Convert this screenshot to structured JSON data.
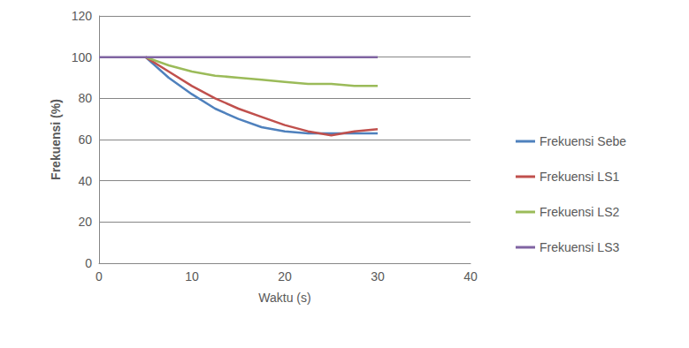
{
  "chart_data": {
    "type": "line",
    "x_label": "Waktu (s)",
    "y_label": "Frekuensi (%)",
    "x": [
      0,
      5,
      7.5,
      10,
      12.5,
      15,
      17.5,
      20,
      22.5,
      25,
      27.5,
      30
    ],
    "series": [
      {
        "name": "Frekuensi Sebe",
        "color": "#4f81bd",
        "values": [
          null,
          100,
          90,
          82,
          75,
          70,
          66,
          64,
          63,
          63,
          63,
          63
        ]
      },
      {
        "name": "Frekuensi LS1",
        "color": "#c0504d",
        "values": [
          null,
          100,
          93,
          86,
          80,
          75,
          71,
          67,
          64,
          62,
          64,
          65
        ]
      },
      {
        "name": "Frekuensi LS2",
        "color": "#9bbb59",
        "values": [
          null,
          100,
          96,
          93,
          91,
          90,
          89,
          88,
          87,
          87,
          86,
          86
        ]
      },
      {
        "name": "Frekuensi LS3",
        "color": "#8064a2",
        "values": [
          100,
          100,
          100,
          100,
          100,
          100,
          100,
          100,
          100,
          100,
          100,
          100
        ]
      }
    ],
    "xlim": [
      0,
      40
    ],
    "xticks": [
      0,
      10,
      20,
      30,
      40
    ],
    "ylim": [
      0,
      120
    ],
    "yticks": [
      0,
      20,
      40,
      60,
      80,
      100,
      120
    ],
    "grid": true,
    "legend": "right"
  }
}
